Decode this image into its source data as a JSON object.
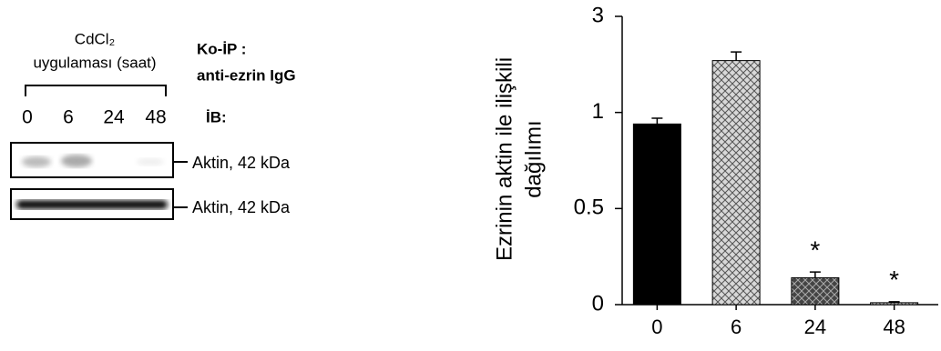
{
  "blot": {
    "treatment_line1": "CdCl₂",
    "treatment_line2": "uygulaması (saat)",
    "lanes": [
      "0",
      "6",
      "24",
      "48"
    ],
    "ip_line1": "Ko-İP :",
    "ip_line2": "anti-ezrin IgG",
    "ib": "İB:",
    "band_labels": [
      "Aktin, 42 kDa",
      "Aktin, 42 kDa"
    ]
  },
  "chart_data": {
    "type": "bar",
    "ylabel": [
      "Ezrinin aktin ile ilişkili",
      "dağılımı"
    ],
    "categories": [
      "0",
      "6",
      "24",
      "48"
    ],
    "values": [
      0.94,
      2.08,
      0.14,
      0.01
    ],
    "errors": [
      0.03,
      0.18,
      0.03,
      0.005
    ],
    "fills": [
      "#000000",
      "url(#hatch-light)",
      "url(#hatch-dark)",
      "url(#hatch-light)"
    ],
    "ylim": [
      0,
      3
    ],
    "yticks": [
      0,
      0.5,
      1,
      3
    ],
    "annotations": [
      {
        "text": "*",
        "category": "24"
      },
      {
        "text": "*",
        "category": "48"
      }
    ]
  }
}
